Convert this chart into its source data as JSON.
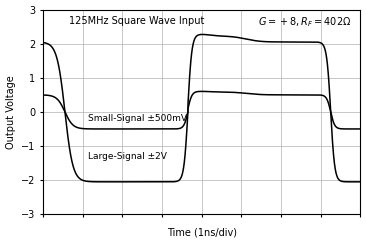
{
  "title_left": "125MHz Square Wave Input",
  "title_right": "G = +8, R_F = 402Ω",
  "xlabel": "Time (1ns/div)",
  "ylabel": "Output Voltage",
  "ylim": [
    -3,
    3
  ],
  "xlim": [
    0,
    8
  ],
  "yticks": [
    -3,
    -2,
    -1,
    0,
    1,
    2,
    3
  ],
  "xticks": [
    0,
    1,
    2,
    3,
    4,
    5,
    6,
    7,
    8
  ],
  "label_small": "Small-Signal ±500mV",
  "label_large": "Large-Signal ±2V",
  "grid_color": "#b0b0b0",
  "line_color": "#000000",
  "background_color": "#ffffff",
  "font_size": 7.0
}
